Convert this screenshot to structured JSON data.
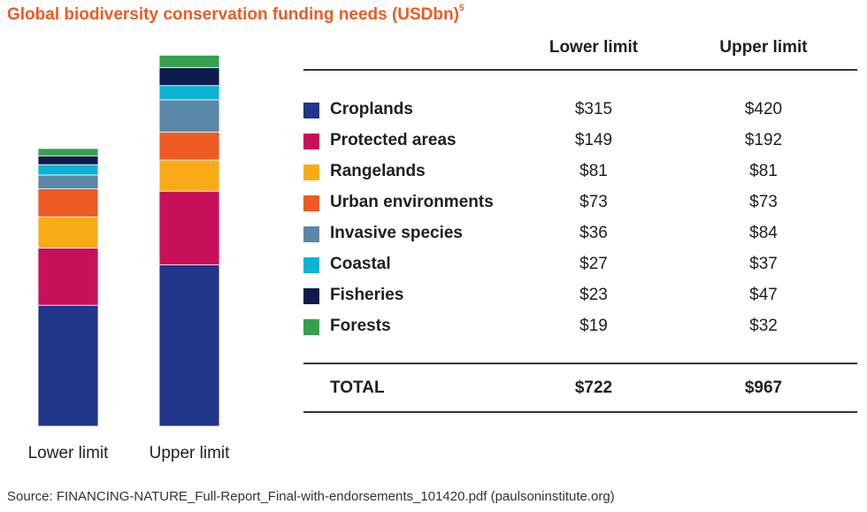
{
  "title": "Global biodiversity conservation funding needs (USDbn)",
  "title_footnote": "5",
  "source": "Source: FINANCING-NATURE_Full-Report_Final-with-endorsements_101420.pdf (paulsoninstitute.org)",
  "table": {
    "col_lower": "Lower limit",
    "col_upper": "Upper limit",
    "rows": [
      {
        "label": "Croplands",
        "lower": "$315",
        "upper": "$420"
      },
      {
        "label": "Protected areas",
        "lower": "$149",
        "upper": "$192"
      },
      {
        "label": "Rangelands",
        "lower": "$81",
        "upper": "$81"
      },
      {
        "label": "Urban environments",
        "lower": "$73",
        "upper": "$73"
      },
      {
        "label": "Invasive species",
        "lower": "$36",
        "upper": "$84"
      },
      {
        "label": "Coastal",
        "lower": "$27",
        "upper": "$37"
      },
      {
        "label": "Fisheries",
        "lower": "$23",
        "upper": "$47"
      },
      {
        "label": "Forests",
        "lower": "$19",
        "upper": "$32"
      }
    ],
    "total": {
      "label": "TOTAL",
      "lower": "$722",
      "upper": "$967"
    }
  },
  "chart_data": {
    "type": "bar",
    "stacked": true,
    "title": "Global biodiversity conservation funding needs (USDbn)",
    "categories": [
      "Lower limit",
      "Upper limit"
    ],
    "series": [
      {
        "name": "Croplands",
        "values": [
          315,
          420
        ],
        "color": "#21358a"
      },
      {
        "name": "Protected areas",
        "values": [
          149,
          192
        ],
        "color": "#c8105a"
      },
      {
        "name": "Rangelands",
        "values": [
          81,
          81
        ],
        "color": "#f8ab17"
      },
      {
        "name": "Urban environments",
        "values": [
          73,
          73
        ],
        "color": "#ee5a24"
      },
      {
        "name": "Invasive species",
        "values": [
          36,
          84
        ],
        "color": "#5a87a7"
      },
      {
        "name": "Coastal",
        "values": [
          27,
          37
        ],
        "color": "#0ab4d2"
      },
      {
        "name": "Fisheries",
        "values": [
          23,
          47
        ],
        "color": "#0d1c4a"
      },
      {
        "name": "Forests",
        "values": [
          19,
          32
        ],
        "color": "#35a04f"
      }
    ],
    "totals": [
      722,
      967
    ],
    "ylim": [
      0,
      967
    ],
    "grid": false,
    "legend": "right"
  }
}
